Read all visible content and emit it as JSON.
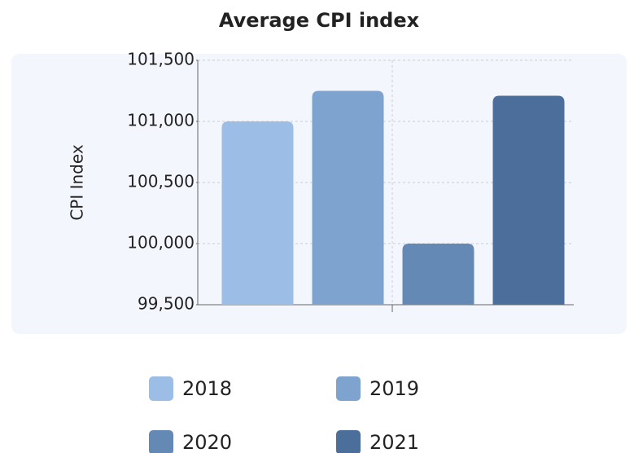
{
  "chart_data": {
    "type": "bar",
    "title": "Average CPI index",
    "y_label": "CPI Index",
    "categories": [
      null
    ],
    "series": [
      {
        "name": "2018",
        "color": "#9bbde6",
        "values": [
          101000
        ]
      },
      {
        "name": "2019",
        "color": "#7fa3cf",
        "values": [
          101250
        ]
      },
      {
        "name": "2020",
        "color": "#6589b5",
        "values": [
          100000
        ]
      },
      {
        "name": "2021",
        "color": "#4b6f9a",
        "values": [
          101210
        ]
      }
    ],
    "ylim": [
      99500,
      101500
    ],
    "yticks": [
      {
        "value": 99500,
        "label": "99,500"
      },
      {
        "value": 100000,
        "label": "100,000"
      },
      {
        "value": 100500,
        "label": "100,500"
      },
      {
        "value": 101000,
        "label": "101,000"
      },
      {
        "value": 101500,
        "label": "101,500"
      }
    ],
    "grid": true
  }
}
